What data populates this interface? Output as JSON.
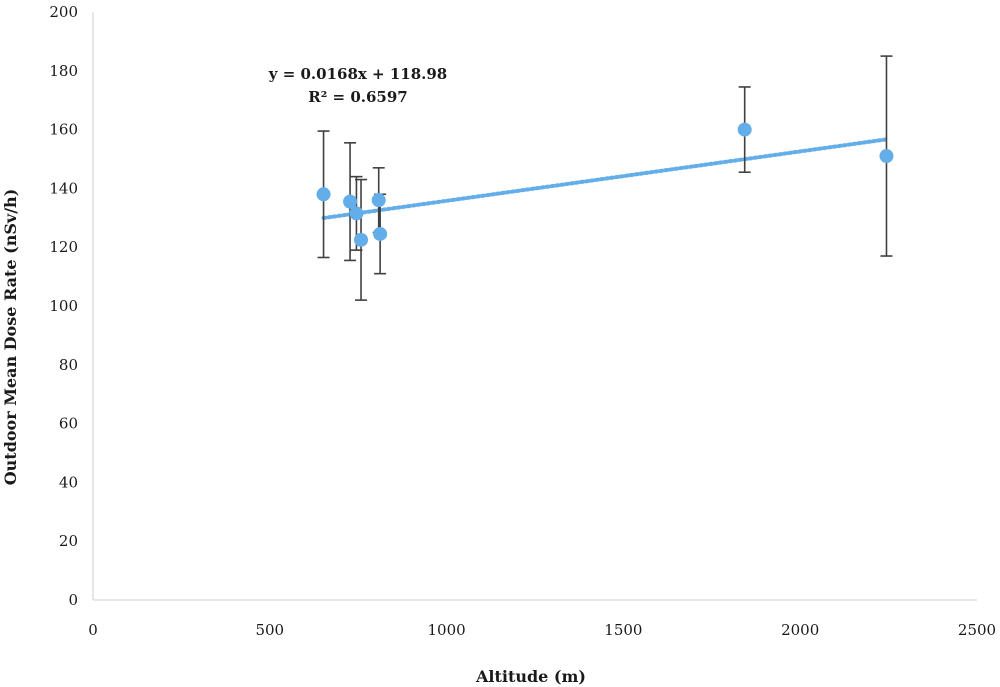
{
  "chart_data": {
    "type": "scatter",
    "xlabel": "Altitude (m)",
    "ylabel": "Outdoor Mean Dose Rate (nSv/h)",
    "xlim": [
      0,
      2500
    ],
    "ylim": [
      0,
      200
    ],
    "xticks": [
      0,
      500,
      1000,
      1500,
      2000,
      2500
    ],
    "yticks": [
      0,
      20,
      40,
      60,
      80,
      100,
      120,
      140,
      160,
      180,
      200
    ],
    "grid": false,
    "marker_color": "#63aee9",
    "trendline_color": "#63aee9",
    "errorbar_color": "#404040",
    "points": [
      {
        "x": 652,
        "y": 138,
        "err": 21.5
      },
      {
        "x": 727,
        "y": 135.5,
        "err": 20
      },
      {
        "x": 745,
        "y": 131.5,
        "err": 12.5
      },
      {
        "x": 758,
        "y": 122.5,
        "err": 20.5
      },
      {
        "x": 808,
        "y": 136,
        "err": 11
      },
      {
        "x": 812,
        "y": 124.5,
        "err": 13.5
      },
      {
        "x": 1843,
        "y": 160,
        "err": 14.5
      },
      {
        "x": 2244,
        "y": 151,
        "err": 34
      }
    ],
    "trendline": {
      "slope": 0.0168,
      "intercept": 118.98,
      "x_range": [
        652,
        2244
      ],
      "equation": "y = 0.0168x + 118.98",
      "r2": "R² = 0.6597"
    }
  }
}
